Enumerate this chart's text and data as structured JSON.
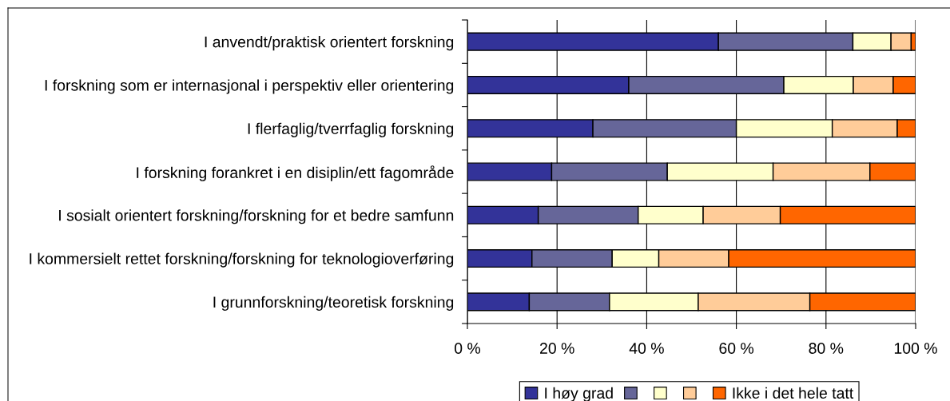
{
  "chart_data": {
    "type": "bar",
    "orientation": "horizontal",
    "stacked": true,
    "categories": [
      "I anvendt/praktisk orientert forskning",
      "I forskning som er internasjonal i perspektiv eller orientering",
      "I flerfaglig/tverrfaglig forskning",
      "I forskning forankret i en disiplin/ett fagområde",
      "I sosialt orientert forskning/forskning for et bedre samfunn",
      "I kommersielt rettet forskning/forskning for teknologioverføring",
      "I grunnforskning/teoretisk forskning"
    ],
    "series": [
      {
        "name": "I høy grad",
        "color": "#333399",
        "values": [
          56,
          36,
          28,
          18.8,
          15.8,
          14.4,
          13.8
        ]
      },
      {
        "color": "#666699",
        "values": [
          30,
          34.6,
          32,
          25.8,
          22.3,
          17.9,
          17.9
        ]
      },
      {
        "color": "#ffffcc",
        "values": [
          8.5,
          15.5,
          21.4,
          23.6,
          14.5,
          10.4,
          19.8
        ]
      },
      {
        "color": "#ffcc99",
        "values": [
          4.5,
          8.9,
          14.5,
          21.6,
          17.2,
          15.6,
          24.9
        ]
      },
      {
        "name": "Ikke i det hele tatt",
        "color": "#ff6600",
        "values": [
          1,
          5,
          4.1,
          10.2,
          30.2,
          41.7,
          23.6
        ]
      }
    ],
    "xlim": [
      0,
      100
    ],
    "xticks": [
      {
        "value": 0,
        "label": "0 %"
      },
      {
        "value": 20,
        "label": "20 %"
      },
      {
        "value": 40,
        "label": "40 %"
      },
      {
        "value": 60,
        "label": "60 %"
      },
      {
        "value": 80,
        "label": "80 %"
      },
      {
        "value": 100,
        "label": "100 %"
      }
    ],
    "grid": "x",
    "legend": "bottom"
  }
}
